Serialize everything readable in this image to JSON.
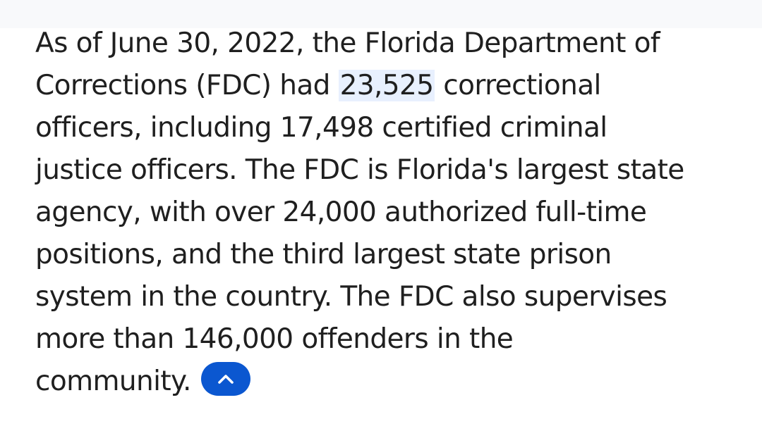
{
  "answer": {
    "lines": [
      "As of June 30, 2022, the Florida Department of",
      "Corrections (FDC) had ",
      "officers, including 17,498 certified criminal",
      "justice officers. The FDC is Florida's largest state",
      "agency, with over 24,000 authorized full-time",
      "positions, and the third largest state prison",
      "system in the country. The FDC also supervises",
      "more than 146,000 offenders in the",
      "community."
    ],
    "highlight": "23,525",
    "after_highlight": " correctional"
  },
  "controls": {
    "collapse_icon": "chevron-up-icon",
    "accent": "#0b57d0",
    "highlight_color": "#e8f0fe"
  }
}
